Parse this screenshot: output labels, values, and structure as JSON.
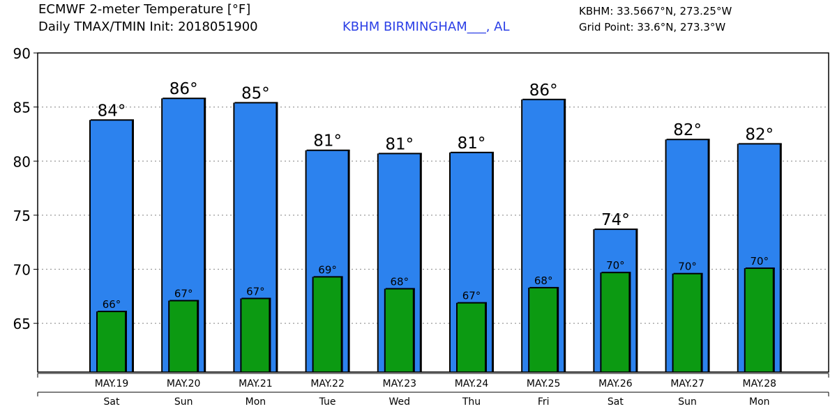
{
  "header": {
    "title_line1": "ECMWF 2-meter Temperature [°F]",
    "title_line2": "Daily TMAX/TMIN Init: 2018051900",
    "station": "KBHM BIRMINGHAM___, AL",
    "coords": "KBHM: 33.5667°N, 273.25°W",
    "grid_point": "Grid Point: 33.6°N, 273.3°W"
  },
  "colors": {
    "tmax_bar": "#2c82ee",
    "tmin_bar": "#0c9a12",
    "grid": "#9a9a9a",
    "bar_edge": "#000000"
  },
  "chart_data": {
    "type": "bar",
    "title": "ECMWF 2-meter Temperature [°F]",
    "xlabel": "",
    "ylabel": "",
    "ylim": [
      60.5,
      90
    ],
    "yticks": [
      65,
      70,
      75,
      80,
      85,
      90
    ],
    "grid": true,
    "categories": [
      "MAY.19",
      "MAY.20",
      "MAY.21",
      "MAY.22",
      "MAY.23",
      "MAY.24",
      "MAY.25",
      "MAY.26",
      "MAY.27",
      "MAY.28"
    ],
    "weekdays": [
      "Sat",
      "Sun",
      "Mon",
      "Tue",
      "Wed",
      "Thu",
      "Fri",
      "Sat",
      "Sun",
      "Mon"
    ],
    "series": [
      {
        "name": "TMAX",
        "values": [
          83.8,
          85.8,
          85.4,
          81.0,
          80.7,
          80.8,
          85.7,
          73.7,
          82.0,
          81.6
        ],
        "labels": [
          "84°",
          "86°",
          "85°",
          "81°",
          "81°",
          "81°",
          "86°",
          "74°",
          "82°",
          "82°"
        ]
      },
      {
        "name": "TMIN",
        "values": [
          66.1,
          67.1,
          67.3,
          69.3,
          68.2,
          66.9,
          68.3,
          69.7,
          69.6,
          70.1
        ],
        "labels": [
          "66°",
          "67°",
          "67°",
          "69°",
          "68°",
          "67°",
          "68°",
          "70°",
          "70°",
          "70°"
        ]
      }
    ]
  }
}
